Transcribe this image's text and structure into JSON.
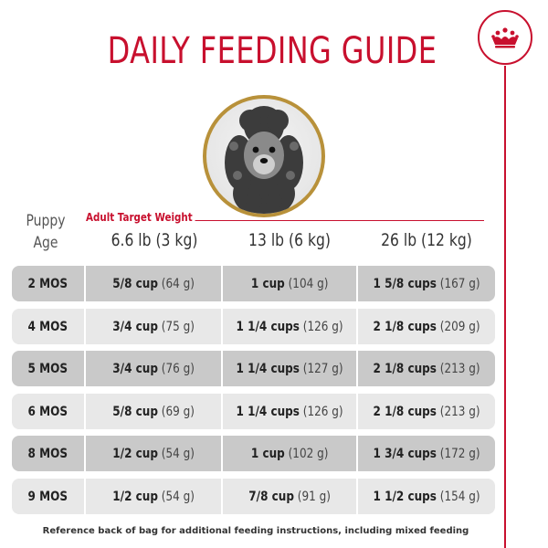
{
  "title": "DAILY FEEDING GUIDE",
  "puppy_age_label": [
    "Puppy",
    "Age"
  ],
  "weight_label": "Adult Target Weight",
  "columns": [
    "6.6 lb (3 kg)",
    "13 lb (6 kg)",
    "26 lb (12 kg)"
  ],
  "rows": [
    {
      "age": "2 MOS",
      "cells": [
        {
          "amount": "5/8 cup",
          "grams": "(64 g)"
        },
        {
          "amount": "1 cup",
          "grams": "(104 g)"
        },
        {
          "amount": "1 5/8 cups",
          "grams": "(167 g)"
        }
      ]
    },
    {
      "age": "4 MOS",
      "cells": [
        {
          "amount": "3/4 cup",
          "grams": "(75 g)"
        },
        {
          "amount": "1 1/4 cups",
          "grams": "(126 g)"
        },
        {
          "amount": "2 1/8 cups",
          "grams": "(209 g)"
        }
      ]
    },
    {
      "age": "5 MOS",
      "cells": [
        {
          "amount": "3/4 cup",
          "grams": "(76 g)"
        },
        {
          "amount": "1 1/4 cups",
          "grams": "(127 g)"
        },
        {
          "amount": "2 1/8 cups",
          "grams": "(213 g)"
        }
      ]
    },
    {
      "age": "6 MOS",
      "cells": [
        {
          "amount": "5/8 cup",
          "grams": "(69 g)"
        },
        {
          "amount": "1 1/4 cups",
          "grams": "(126 g)"
        },
        {
          "amount": "2 1/8 cups",
          "grams": "(213 g)"
        }
      ]
    },
    {
      "age": "8 MOS",
      "cells": [
        {
          "amount": "1/2 cup",
          "grams": "(54 g)"
        },
        {
          "amount": "1 cup",
          "grams": "(102 g)"
        },
        {
          "amount": "1 3/4 cups",
          "grams": "(172 g)"
        }
      ]
    },
    {
      "age": "9 MOS",
      "cells": [
        {
          "amount": "1/2 cup",
          "grams": "(54 g)"
        },
        {
          "amount": "7/8 cup",
          "grams": "(91 g)"
        },
        {
          "amount": "1 1/2 cups",
          "grams": "(154 g)"
        }
      ]
    }
  ],
  "footnote": "Reference back of bag for additional feeding instructions, including mixed feeding",
  "colors": {
    "brand_red": "#c8102e",
    "frame_gold": "#b8913a",
    "row_dark": "#c9c9c9",
    "row_light": "#e8e8e8"
  },
  "icons": {
    "brand": "crown-icon",
    "photo": "puppy-photo"
  }
}
